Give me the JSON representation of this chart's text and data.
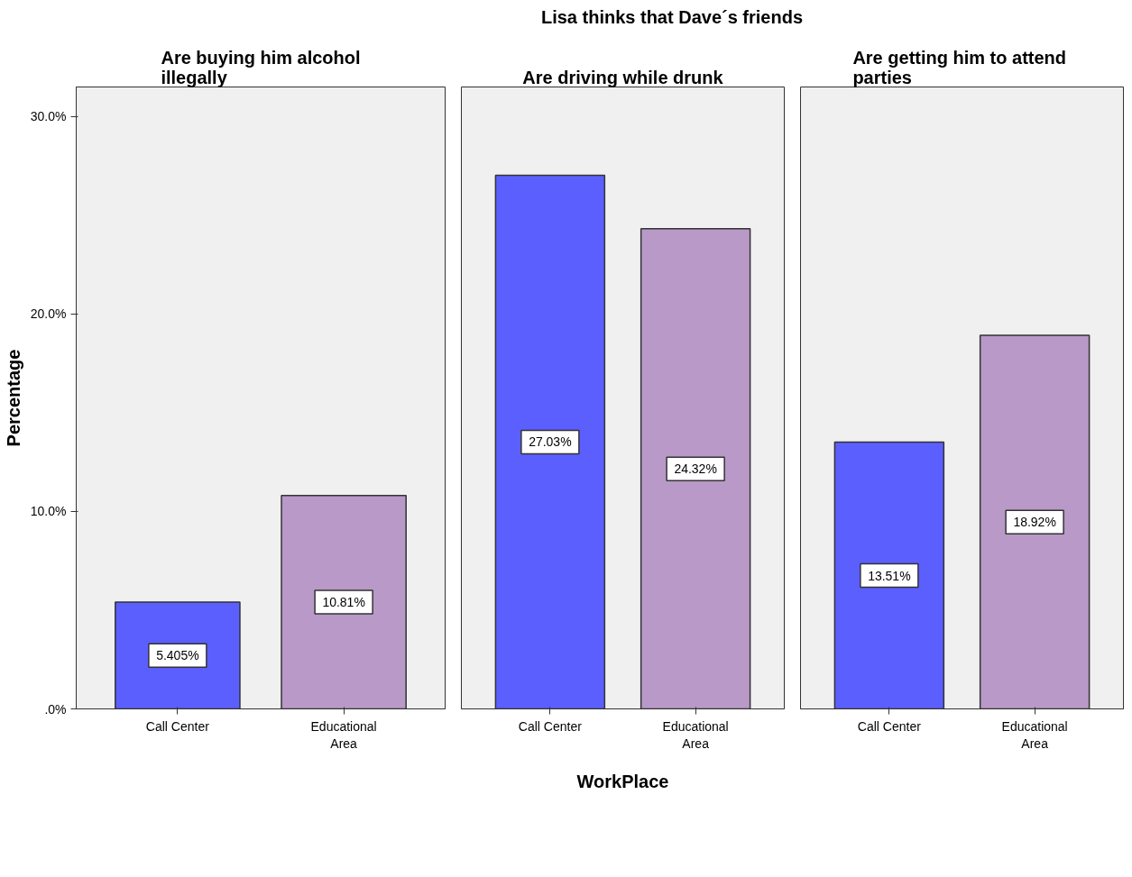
{
  "chart_data": [
    {
      "type": "bar",
      "title": "Are buying him alcohol\nillegally",
      "ylabel": "Percentage",
      "categories": [
        "Call Center",
        "Educational\nArea"
      ],
      "values": [
        5.405,
        10.81
      ],
      "colors": [
        "#5b5ffe",
        "#b899c8"
      ],
      "value_labels": [
        "5.405%",
        "10.81%"
      ],
      "ylim": [
        0,
        31.5
      ],
      "yticks": [
        {
          "value": 0,
          "label": ".0%"
        },
        {
          "value": 10,
          "label": "10.0%"
        },
        {
          "value": 20,
          "label": "20.0%"
        },
        {
          "value": 30,
          "label": "30.0%"
        }
      ],
      "grid": false
    },
    {
      "type": "bar",
      "title": "Are driving while drunk",
      "xlabel": "WorkPlace",
      "annotations": [
        "Lisa thinks that Dave´s friends"
      ],
      "categories": [
        "Call Center",
        "Educational\nArea"
      ],
      "values": [
        27.03,
        24.32
      ],
      "colors": [
        "#5b5ffe",
        "#b899c8"
      ],
      "value_labels": [
        "27.03%",
        "24.32%"
      ],
      "ylim": [
        0,
        31.5
      ],
      "tick_labels": "x",
      "grid": false
    },
    {
      "type": "bar",
      "title": "Are getting him to  attend\nparties",
      "categories": [
        "Call Center",
        "Educational\nArea"
      ],
      "values": [
        13.51,
        18.92
      ],
      "colors": [
        "#5b5ffe",
        "#b899c8"
      ],
      "value_labels": [
        "13.51%",
        "18.92%"
      ],
      "ylim": [
        0,
        31.5
      ],
      "tick_labels": "x",
      "grid": false
    }
  ]
}
